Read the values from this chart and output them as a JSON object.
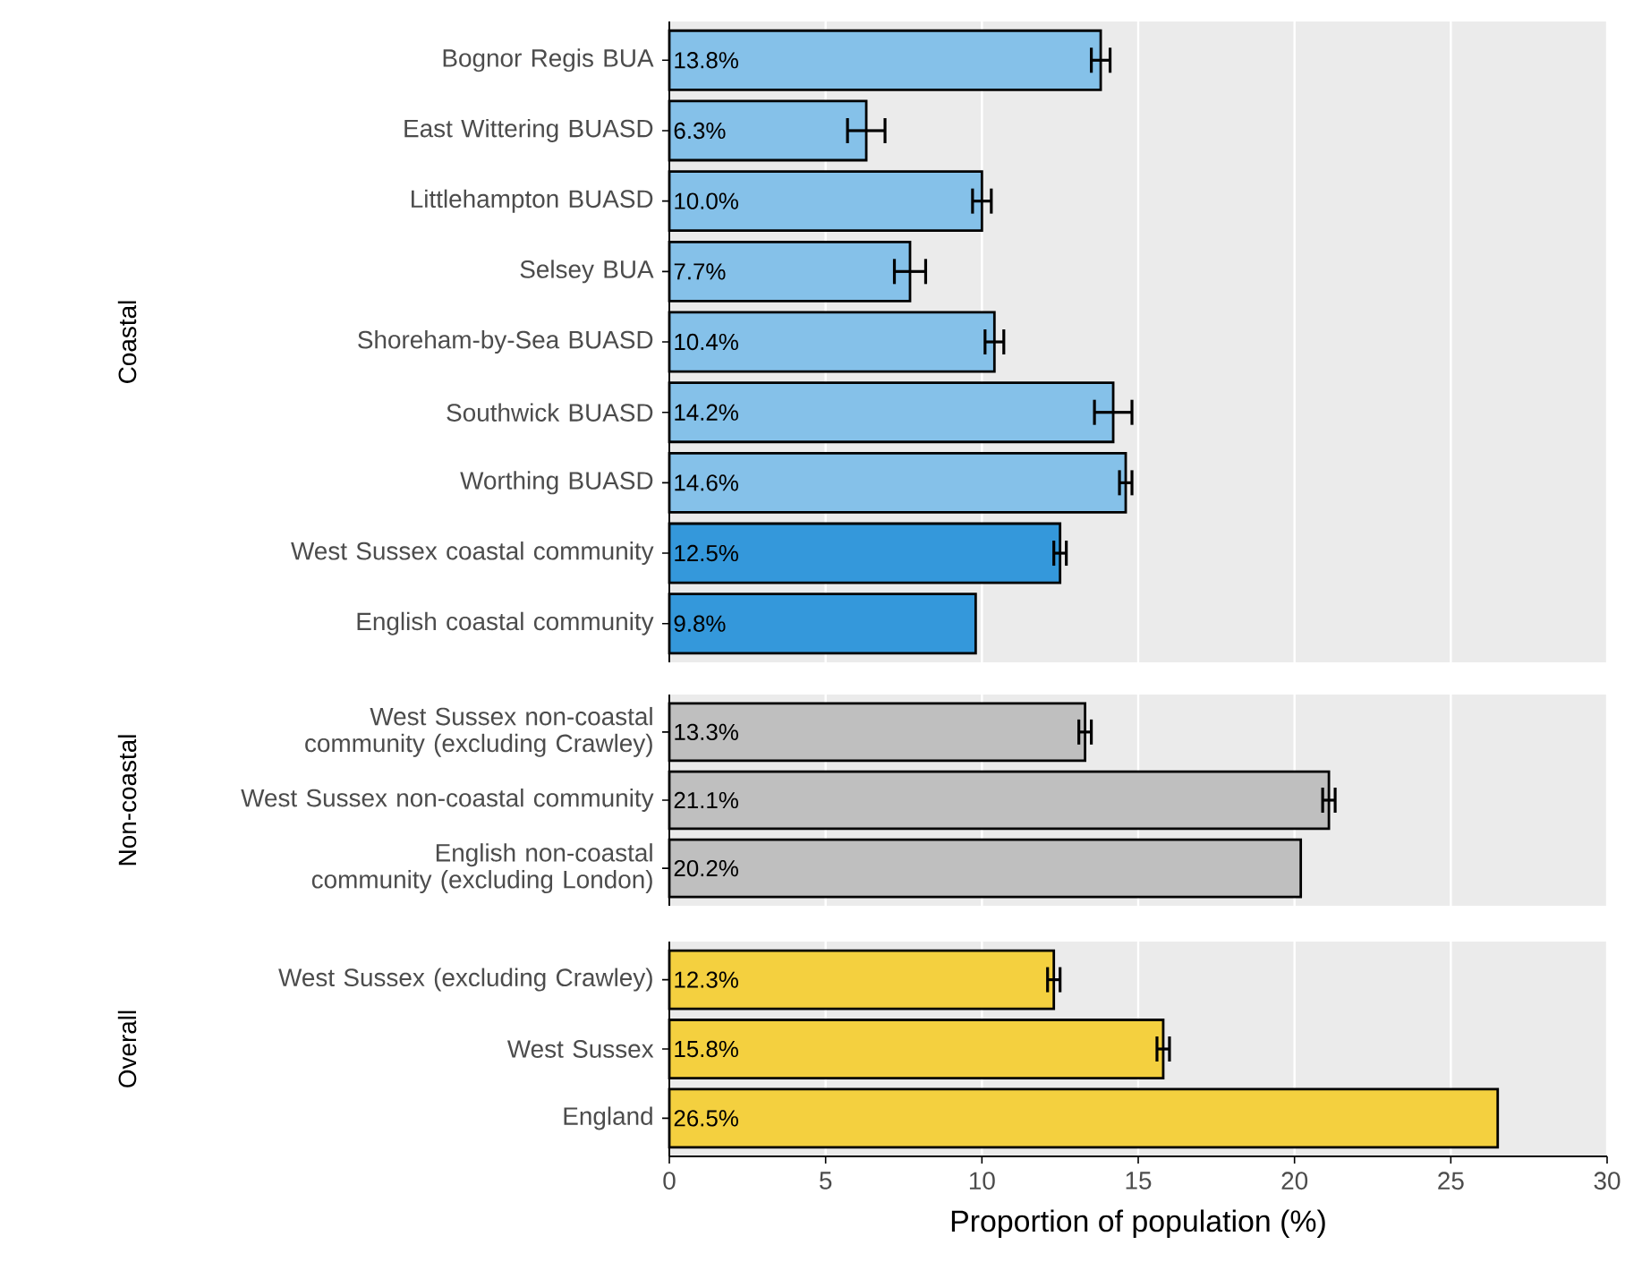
{
  "chart_data": [
    {
      "type": "bar",
      "orientation": "horizontal",
      "ylabel": "Coastal",
      "categories": [
        "Bognor Regis BUA",
        "East Wittering BUASD",
        "Littlehampton BUASD",
        "Selsey BUA",
        "Shoreham-by-Sea BUASD",
        "Southwick BUASD",
        "Worthing BUASD",
        "West Sussex coastal community",
        "English coastal community"
      ],
      "values": [
        13.8,
        6.3,
        10.0,
        7.7,
        10.4,
        14.2,
        14.6,
        12.5,
        9.8
      ],
      "value_labels": [
        "13.8%",
        "6.3%",
        "10.0%",
        "7.7%",
        "10.4%",
        "14.2%",
        "14.6%",
        "12.5%",
        "9.8%"
      ],
      "errors": [
        0.3,
        0.6,
        0.3,
        0.5,
        0.3,
        0.6,
        0.2,
        0.2,
        null
      ],
      "colors": [
        "#85c1e9",
        "#85c1e9",
        "#85c1e9",
        "#85c1e9",
        "#85c1e9",
        "#85c1e9",
        "#85c1e9",
        "#3498db",
        "#3498db"
      ],
      "xlim": [
        0,
        30
      ],
      "xticks": [
        0,
        5,
        10,
        15,
        20,
        25,
        30
      ],
      "grid": "x",
      "tick_labels": "y"
    },
    {
      "type": "bar",
      "orientation": "horizontal",
      "ylabel": "Non-coastal",
      "categories": [
        "West Sussex non-coastal community (excluding Crawley)",
        "West Sussex non-coastal community",
        "English non-coastal community (excluding London)"
      ],
      "values": [
        13.3,
        21.1,
        20.2
      ],
      "value_labels": [
        "13.3%",
        "21.1%",
        "20.2%"
      ],
      "errors": [
        0.2,
        0.2,
        null
      ],
      "colors": [
        "#bfbfbf",
        "#bfbfbf",
        "#bfbfbf"
      ],
      "xlim": [
        0,
        30
      ],
      "xticks": [
        0,
        5,
        10,
        15,
        20,
        25,
        30
      ],
      "grid": "x",
      "tick_labels": "y"
    },
    {
      "type": "bar",
      "orientation": "horizontal",
      "ylabel": "Overall",
      "xlabel": "Proportion of population (%)",
      "categories": [
        "West Sussex (excluding Crawley)",
        "West Sussex",
        "England"
      ],
      "values": [
        12.3,
        15.8,
        26.5
      ],
      "value_labels": [
        "12.3%",
        "15.8%",
        "26.5%"
      ],
      "errors": [
        0.2,
        0.2,
        null
      ],
      "colors": [
        "#f4d03f",
        "#f4d03f",
        "#f4d03f"
      ],
      "xlim": [
        0,
        30
      ],
      "xticks": [
        0,
        5,
        10,
        15,
        20,
        25,
        30
      ],
      "grid": "x"
    }
  ]
}
